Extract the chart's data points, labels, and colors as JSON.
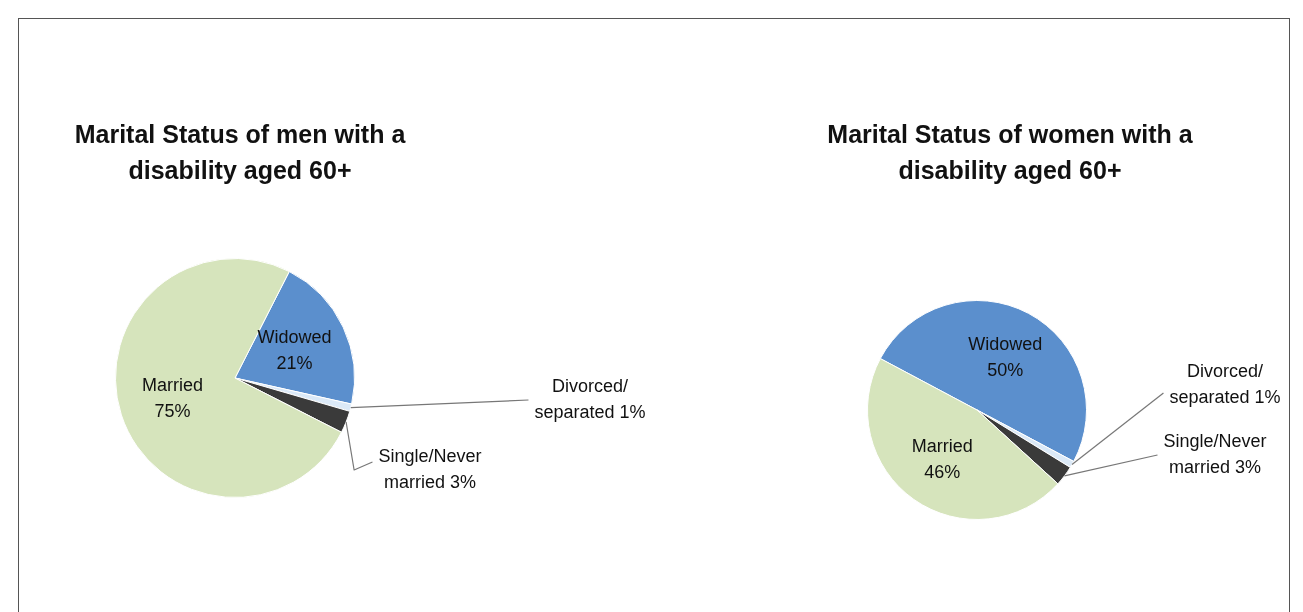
{
  "chart_data": [
    {
      "type": "pie",
      "title": "Marital Status of men with a disability aged 60+",
      "categories": [
        "Widowed",
        "Divorced/ separated",
        "Single/Never married",
        "Married"
      ],
      "values": [
        21,
        1,
        3,
        75
      ],
      "value_labels": [
        "21%",
        "1%",
        "3%",
        "75%"
      ],
      "colors": [
        "#5b8fcd",
        "#dbe9f7",
        "#3a3a3a",
        "#d6e4bc"
      ],
      "legend": false
    },
    {
      "type": "pie",
      "title": "Marital Status of women with a disability aged 60+",
      "categories": [
        "Widowed",
        "Divorced/ separated",
        "Single/Never married",
        "Married"
      ],
      "values": [
        50,
        1,
        3,
        46
      ],
      "value_labels": [
        "50%",
        "1%",
        "3%",
        "46%"
      ],
      "colors": [
        "#5b8fcd",
        "#dbe9f7",
        "#3a3a3a",
        "#d6e4bc"
      ],
      "legend": false
    }
  ]
}
